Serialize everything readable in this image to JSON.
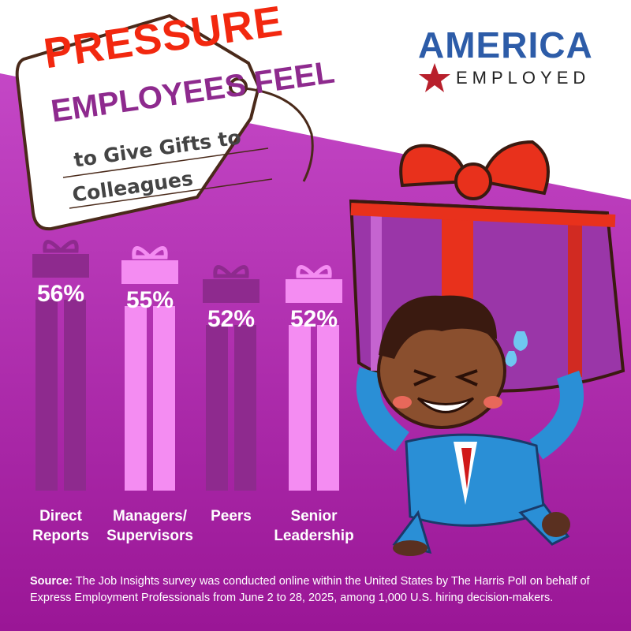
{
  "title": {
    "line1": "PRESSURE",
    "line2": "EMPLOYEES FEEL",
    "line3": "to Give Gifts to",
    "line4": "Colleagues"
  },
  "logo": {
    "word1": "AMERICA",
    "word2": "EMPLOYED"
  },
  "colors": {
    "dark_bar": "#8e2a8e",
    "light_bar": "#f48cf2",
    "background": "#b232b4",
    "title_red": "#f2280f",
    "logo_blue": "#2d5ca8"
  },
  "chart_data": {
    "type": "bar",
    "categories": [
      "Direct Reports",
      "Managers/ Supervisors",
      "Peers",
      "Senior Leadership"
    ],
    "category_lines": [
      [
        "Direct",
        "Reports"
      ],
      [
        "Managers/",
        "Supervisors"
      ],
      [
        "Peers",
        ""
      ],
      [
        "Senior",
        "Leadership"
      ]
    ],
    "values": [
      56,
      55,
      52,
      52
    ],
    "data_labels": [
      "56%",
      "55%",
      "52%",
      "52%"
    ],
    "unit": "%"
  },
  "source": {
    "label": "Source:",
    "text": "The Job Insights survey was conducted online within the United States by The Harris Poll on behalf of Express Employment Professionals from June 2 to 28, 2025, among 1,000 U.S. hiring decision-makers."
  }
}
